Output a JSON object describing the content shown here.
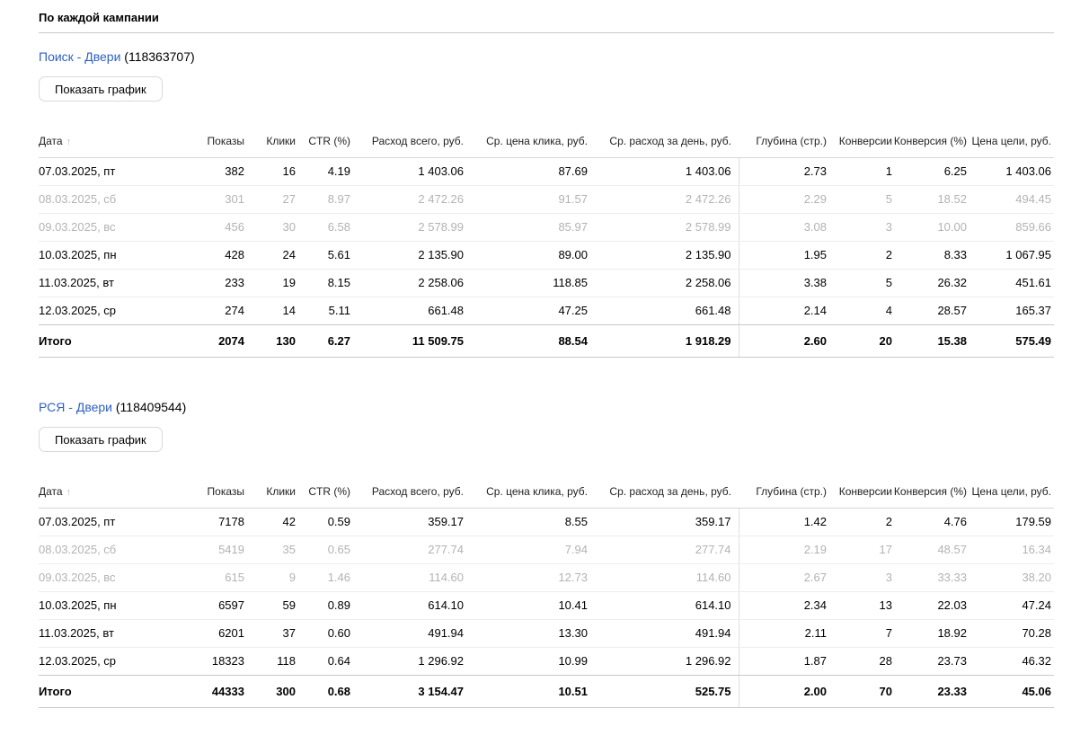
{
  "page": {
    "title": "По каждой кампании"
  },
  "table": {
    "sort_icon": "↑",
    "columns": [
      {
        "label": "Дата",
        "sorted": "asc"
      },
      {
        "label": "Показы"
      },
      {
        "label": "Клики"
      },
      {
        "label": "CTR (%)"
      },
      {
        "label": "Расход всего, руб."
      },
      {
        "label": "Ср. цена клика, руб."
      },
      {
        "label": "Ср. расход за день, руб."
      },
      {
        "label": "Глубина (стр.)"
      },
      {
        "label": "Конверсии"
      },
      {
        "label": "Конверсия (%)"
      },
      {
        "label": "Цена цели, руб."
      }
    ]
  },
  "campaigns": [
    {
      "name": "Поиск - Двери",
      "id": "(118363707)",
      "show_chart_label": "Показать график",
      "rows": [
        {
          "weekend": false,
          "cells": [
            "07.03.2025, пт",
            "382",
            "16",
            "4.19",
            "1 403.06",
            "87.69",
            "1 403.06",
            "2.73",
            "1",
            "6.25",
            "1 403.06"
          ]
        },
        {
          "weekend": true,
          "cells": [
            "08.03.2025, сб",
            "301",
            "27",
            "8.97",
            "2 472.26",
            "91.57",
            "2 472.26",
            "2.29",
            "5",
            "18.52",
            "494.45"
          ]
        },
        {
          "weekend": true,
          "cells": [
            "09.03.2025, вс",
            "456",
            "30",
            "6.58",
            "2 578.99",
            "85.97",
            "2 578.99",
            "3.08",
            "3",
            "10.00",
            "859.66"
          ]
        },
        {
          "weekend": false,
          "cells": [
            "10.03.2025, пн",
            "428",
            "24",
            "5.61",
            "2 135.90",
            "89.00",
            "2 135.90",
            "1.95",
            "2",
            "8.33",
            "1 067.95"
          ]
        },
        {
          "weekend": false,
          "cells": [
            "11.03.2025, вт",
            "233",
            "19",
            "8.15",
            "2 258.06",
            "118.85",
            "2 258.06",
            "3.38",
            "5",
            "26.32",
            "451.61"
          ]
        },
        {
          "weekend": false,
          "cells": [
            "12.03.2025, ср",
            "274",
            "14",
            "5.11",
            "661.48",
            "47.25",
            "661.48",
            "2.14",
            "4",
            "28.57",
            "165.37"
          ]
        }
      ],
      "total": {
        "cells": [
          "Итого",
          "2074",
          "130",
          "6.27",
          "11 509.75",
          "88.54",
          "1 918.29",
          "2.60",
          "20",
          "15.38",
          "575.49"
        ]
      }
    },
    {
      "name": "РСЯ - Двери",
      "id": "(118409544)",
      "show_chart_label": "Показать график",
      "rows": [
        {
          "weekend": false,
          "cells": [
            "07.03.2025, пт",
            "7178",
            "42",
            "0.59",
            "359.17",
            "8.55",
            "359.17",
            "1.42",
            "2",
            "4.76",
            "179.59"
          ]
        },
        {
          "weekend": true,
          "cells": [
            "08.03.2025, сб",
            "5419",
            "35",
            "0.65",
            "277.74",
            "7.94",
            "277.74",
            "2.19",
            "17",
            "48.57",
            "16.34"
          ]
        },
        {
          "weekend": true,
          "cells": [
            "09.03.2025, вс",
            "615",
            "9",
            "1.46",
            "114.60",
            "12.73",
            "114.60",
            "2.67",
            "3",
            "33.33",
            "38.20"
          ]
        },
        {
          "weekend": false,
          "cells": [
            "10.03.2025, пн",
            "6597",
            "59",
            "0.89",
            "614.10",
            "10.41",
            "614.10",
            "2.34",
            "13",
            "22.03",
            "47.24"
          ]
        },
        {
          "weekend": false,
          "cells": [
            "11.03.2025, вт",
            "6201",
            "37",
            "0.60",
            "491.94",
            "13.30",
            "491.94",
            "2.11",
            "7",
            "18.92",
            "70.28"
          ]
        },
        {
          "weekend": false,
          "cells": [
            "12.03.2025, ср",
            "18323",
            "118",
            "0.64",
            "1 296.92",
            "10.99",
            "1 296.92",
            "1.87",
            "28",
            "23.73",
            "46.32"
          ]
        }
      ],
      "total": {
        "cells": [
          "Итого",
          "44333",
          "300",
          "0.68",
          "3 154.47",
          "10.51",
          "525.75",
          "2.00",
          "70",
          "23.33",
          "45.06"
        ]
      }
    }
  ],
  "colors": {
    "link": "#2d61c1",
    "weekend_text": "#b3b3b3"
  }
}
